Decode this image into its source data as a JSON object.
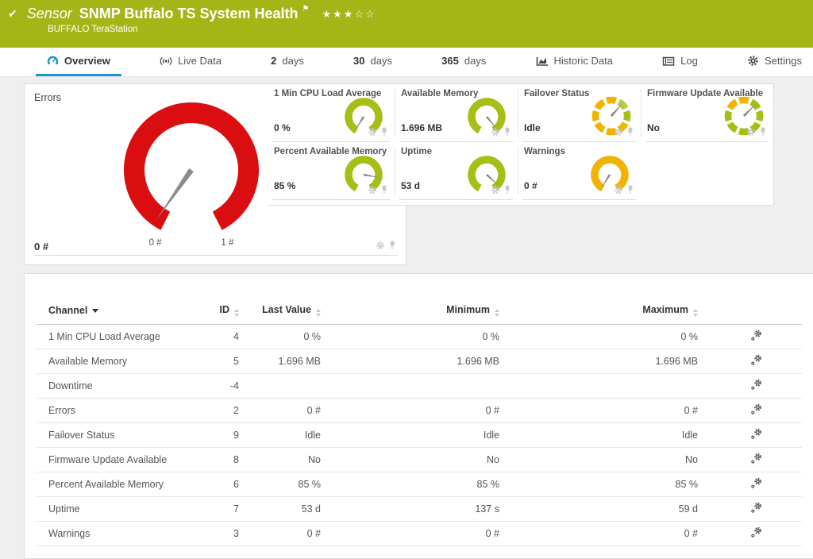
{
  "header": {
    "check_icon": "✔",
    "sensor_label": "Sensor",
    "title": "SNMP Buffalo TS System Health",
    "flag_icon": "⚑",
    "rating": {
      "filled": 3,
      "total": 5
    },
    "device": "BUFFALO TeraStation"
  },
  "tabs": [
    {
      "icon": "gauge-icon",
      "label": "Overview",
      "active": true
    },
    {
      "icon": "live-data-icon",
      "label": "Live Data"
    },
    {
      "num": "2",
      "label": "days"
    },
    {
      "num": "30",
      "label": "days"
    },
    {
      "num": "365",
      "label": "days"
    },
    {
      "icon": "chart-icon",
      "label": "Historic Data"
    },
    {
      "icon": "log-icon",
      "label": "Log"
    },
    {
      "icon": "gear-icon",
      "label": "Settings"
    }
  ],
  "colors": {
    "header_green": "#a4b617",
    "tab_blue": "#1b94d2",
    "gauge_green": "#a6be16",
    "gauge_green_light": "#b9cb46",
    "gauge_red": "#da0d11",
    "gauge_yellow": "#f0b400",
    "needle_gray": "#8b8b8b",
    "icon_gray": "#c5c9cc"
  },
  "gauges": {
    "main": {
      "title": "Errors",
      "value": "0 #",
      "scale_min": "0 #",
      "scale_max": "1 #",
      "type": "arc",
      "color": "#da0d11",
      "needle_deg": 215
    },
    "small": [
      {
        "title": "1 Min CPU Load Average",
        "value": "0 %",
        "type": "arc",
        "color": "#a6be16",
        "needle_deg": 212
      },
      {
        "title": "Available Memory",
        "value": "1.696 MB",
        "type": "arc",
        "color": "#a6be16",
        "needle_deg": 140
      },
      {
        "title": "Failover Status",
        "value": "Idle",
        "type": "lookup",
        "needle_deg": 42,
        "segments": [
          "#f0b400",
          "#b9cb46",
          "#a6be16",
          "#f0b400",
          "#f0b400",
          "#f0b400",
          "#f0b400",
          "#f0b400"
        ]
      },
      {
        "title": "Firmware Update Available",
        "value": "No",
        "type": "lookup",
        "needle_deg": 45,
        "segments": [
          "#f0b400",
          "#a6be16",
          "#a6be16",
          "#a6be16",
          "#a6be16",
          "#a6be16",
          "#a6be16",
          "#f0b400"
        ]
      },
      {
        "title": "Percent Available Memory",
        "value": "85 %",
        "type": "arc",
        "color": "#a6be16",
        "needle_deg": 100
      },
      {
        "title": "Uptime",
        "value": "53 d",
        "type": "arc",
        "color": "#a6be16",
        "needle_deg": 132
      },
      {
        "title": "Warnings",
        "value": "0 #",
        "type": "arc",
        "color": "#f0b400",
        "needle_deg": 212
      }
    ]
  },
  "table": {
    "columns": [
      "Channel",
      "ID",
      "Last Value",
      "Minimum",
      "Maximum"
    ],
    "rows": [
      [
        "1 Min CPU Load Average",
        "4",
        "0 %",
        "0 %",
        "0 %"
      ],
      [
        "Available Memory",
        "5",
        "1.696 MB",
        "1.696 MB",
        "1.696 MB"
      ],
      [
        "Downtime",
        "-4",
        "",
        "",
        ""
      ],
      [
        "Errors",
        "2",
        "0 #",
        "0 #",
        "0 #"
      ],
      [
        "Failover Status",
        "9",
        "Idle",
        "Idle",
        "Idle"
      ],
      [
        "Firmware Update Available",
        "8",
        "No",
        "No",
        "No"
      ],
      [
        "Percent Available Memory",
        "6",
        "85 %",
        "85 %",
        "85 %"
      ],
      [
        "Uptime",
        "7",
        "53 d",
        "137 s",
        "59 d"
      ],
      [
        "Warnings",
        "3",
        "0 #",
        "0 #",
        "0 #"
      ]
    ]
  }
}
